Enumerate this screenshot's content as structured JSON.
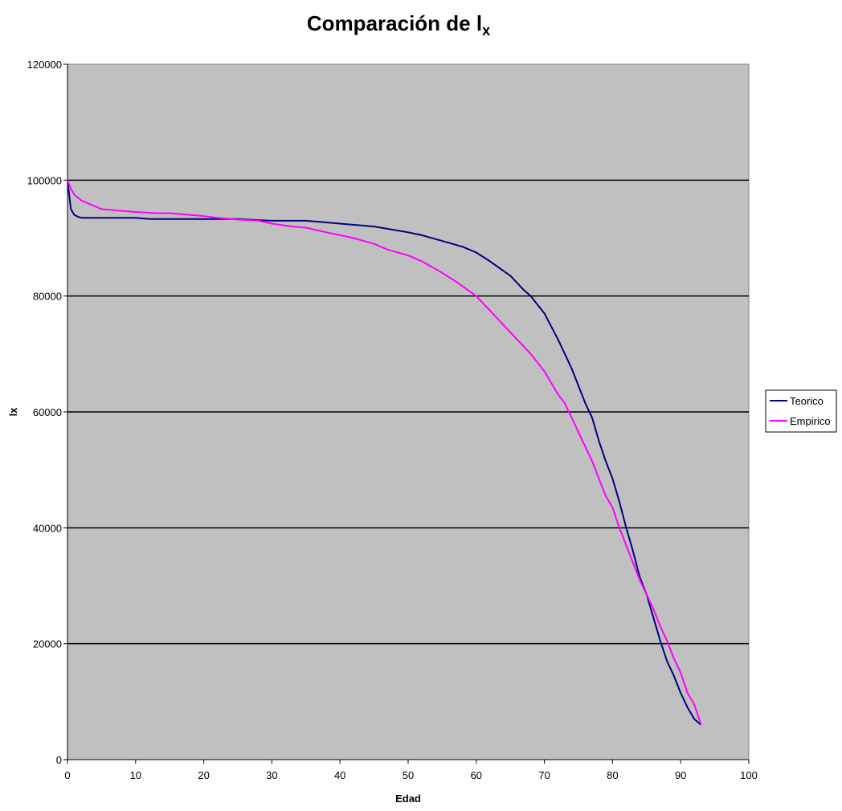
{
  "chart_data": {
    "type": "line",
    "title_main": "Comparación de l",
    "title_sub": "x",
    "xlabel": "Edad",
    "ylabel": "lx",
    "xlim": [
      0,
      100
    ],
    "ylim": [
      0,
      120000
    ],
    "xticks": [
      0,
      10,
      20,
      30,
      40,
      50,
      60,
      70,
      80,
      90,
      100
    ],
    "yticks": [
      0,
      20000,
      40000,
      60000,
      80000,
      100000,
      120000
    ],
    "ytick_labels": [
      "0",
      "20000",
      "40000",
      "60000",
      "80000",
      "100000",
      "120000"
    ],
    "grid": "horizontal",
    "plot_background": "#c0c0c0",
    "legend_position": "right",
    "series": [
      {
        "name": "Teorico",
        "color": "#000080",
        "x": [
          0,
          0.5,
          1,
          1.5,
          2,
          3,
          5,
          8,
          10,
          12,
          15,
          20,
          25,
          28,
          30,
          35,
          40,
          45,
          50,
          52,
          55,
          58,
          60,
          62,
          65,
          67,
          68,
          70,
          72,
          74,
          75,
          76,
          77,
          78,
          79,
          80,
          81,
          82,
          83,
          84,
          85,
          86,
          87,
          88,
          89,
          90,
          91,
          92,
          93
        ],
        "values": [
          100000,
          95000,
          94000,
          93700,
          93500,
          93500,
          93500,
          93500,
          93500,
          93300,
          93300,
          93300,
          93300,
          93100,
          93000,
          93000,
          92500,
          92000,
          91000,
          90500,
          89500,
          88500,
          87500,
          86000,
          83500,
          81000,
          80000,
          77000,
          72500,
          67500,
          64500,
          61500,
          59000,
          55000,
          51500,
          48500,
          44500,
          40000,
          36000,
          31500,
          28500,
          24500,
          20500,
          17000,
          14500,
          11500,
          9000,
          7000,
          6000
        ]
      },
      {
        "name": "Empirico",
        "color": "#ff00ff",
        "x": [
          0,
          0.5,
          1,
          2,
          3,
          4,
          5,
          8,
          10,
          13,
          15,
          18,
          20,
          22,
          25,
          28,
          30,
          33,
          35,
          38,
          40,
          42,
          45,
          47,
          50,
          52,
          55,
          57,
          60,
          62,
          64,
          66,
          68,
          70,
          71,
          72,
          73,
          74,
          75,
          76,
          77,
          78,
          79,
          80,
          81,
          82,
          83,
          84,
          85,
          86,
          87,
          88,
          89,
          90,
          91,
          92,
          93
        ],
        "values": [
          100000,
          98500,
          97500,
          96500,
          96000,
          95500,
          95000,
          94700,
          94500,
          94300,
          94300,
          94000,
          93800,
          93500,
          93200,
          93000,
          92500,
          92000,
          91800,
          91000,
          90500,
          90000,
          89000,
          88000,
          87000,
          86000,
          84000,
          82500,
          80000,
          77500,
          75000,
          72500,
          70000,
          67000,
          65000,
          63000,
          61500,
          59000,
          56500,
          54000,
          51500,
          48500,
          45500,
          43500,
          40000,
          37000,
          34000,
          31000,
          28500,
          26000,
          23000,
          20500,
          17500,
          15000,
          11500,
          9500,
          6000
        ]
      }
    ]
  }
}
